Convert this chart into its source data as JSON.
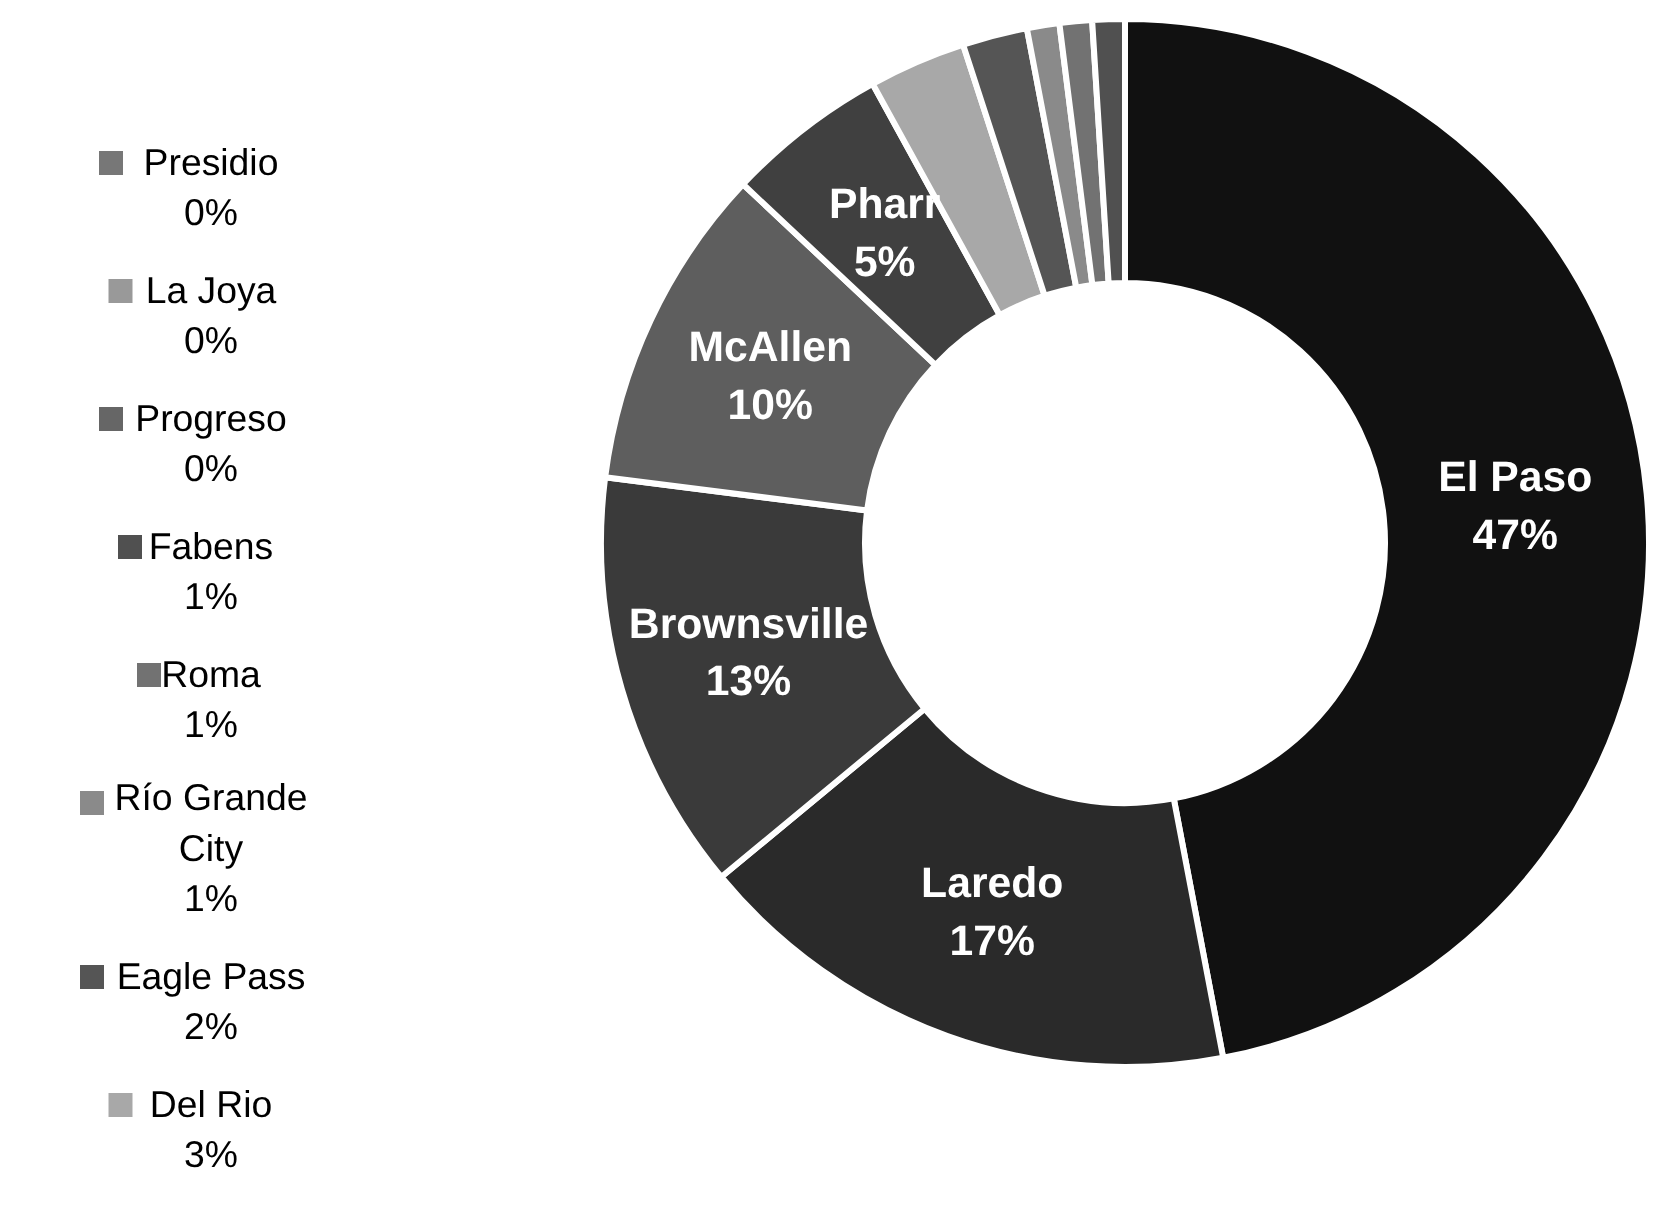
{
  "chart_data": {
    "type": "donut",
    "categories": [
      "El Paso",
      "Laredo",
      "Brownsville",
      "McAllen",
      "Pharr",
      "Del Rio",
      "Eagle Pass",
      "Río Grande City",
      "Roma",
      "Fabens",
      "Progreso",
      "La Joya",
      "Presidio"
    ],
    "values": [
      47,
      17,
      13,
      10,
      5,
      3,
      2,
      1,
      1,
      1,
      0,
      0,
      0
    ],
    "value_labels": [
      "47%",
      "17%",
      "13%",
      "10%",
      "5%",
      "3%",
      "2%",
      "1%",
      "1%",
      "1%",
      "0%",
      "0%",
      "0%"
    ],
    "colors": [
      "#111111",
      "#2a2a2a",
      "#3a3a3a",
      "#5e5e5e",
      "#404040",
      "#a8a8a8",
      "#555555",
      "#8a8a8a",
      "#727272",
      "#505050",
      "#666666",
      "#999999",
      "#777777"
    ],
    "legend": "left"
  }
}
